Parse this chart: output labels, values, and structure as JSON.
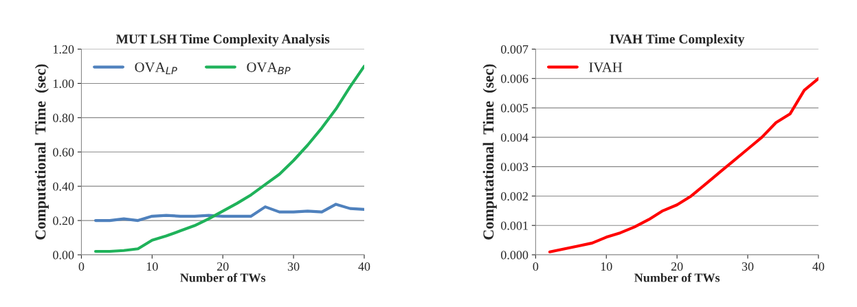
{
  "chart_data": [
    {
      "type": "line",
      "title": "MUT LSH Time Complexity Analysis",
      "xlabel": "Number of TWs",
      "ylabel": "Computational  Time  (sec)",
      "x": [
        2,
        4,
        6,
        8,
        10,
        12,
        14,
        16,
        18,
        20,
        22,
        24,
        26,
        28,
        30,
        32,
        34,
        36,
        38,
        40
      ],
      "series": [
        {
          "name": "OVA$_{LP}$",
          "color": "#4f81bd",
          "values": [
            0.2,
            0.2,
            0.21,
            0.2,
            0.225,
            0.23,
            0.225,
            0.225,
            0.23,
            0.225,
            0.225,
            0.225,
            0.28,
            0.25,
            0.25,
            0.255,
            0.25,
            0.295,
            0.27,
            0.265
          ]
        },
        {
          "name": "OVA$_{BP}$",
          "color": "#1fb25a",
          "values": [
            0.02,
            0.02,
            0.025,
            0.035,
            0.085,
            0.11,
            0.14,
            0.17,
            0.21,
            0.255,
            0.3,
            0.35,
            0.41,
            0.47,
            0.55,
            0.64,
            0.74,
            0.85,
            0.98,
            1.1
          ]
        }
      ],
      "xlim": [
        0,
        40
      ],
      "xticks": [
        0,
        10,
        20,
        30,
        40
      ],
      "ylim": [
        0,
        1.2
      ],
      "yticks": [
        {
          "value": 0,
          "label": "0.00"
        },
        {
          "value": 0.2,
          "label": "0.20"
        },
        {
          "value": 0.4,
          "label": "0.40"
        },
        {
          "value": 0.6,
          "label": "0.60"
        },
        {
          "value": 0.8,
          "label": "0.80"
        },
        {
          "value": 1.0,
          "label": "1.00"
        },
        {
          "value": 1.2,
          "label": "1.20"
        }
      ],
      "grid": "y",
      "legend": "top left",
      "marker": "none",
      "line_style": "solid"
    },
    {
      "type": "line",
      "title": "IVAH Time Complexity",
      "xlabel": "Number of TWs",
      "ylabel": "Computational  Time  (sec)",
      "x": [
        2,
        4,
        6,
        8,
        10,
        12,
        14,
        16,
        18,
        20,
        22,
        24,
        26,
        28,
        30,
        32,
        34,
        36,
        38,
        40
      ],
      "series": [
        {
          "name": "IVAH",
          "color": "#ff0000",
          "values": [
            0.0001,
            0.0002,
            0.0003,
            0.0004,
            0.0006,
            0.00075,
            0.00095,
            0.0012,
            0.0015,
            0.0017,
            0.002,
            0.0024,
            0.0028,
            0.0032,
            0.0036,
            0.004,
            0.0045,
            0.0048,
            0.0056,
            0.006
          ]
        }
      ],
      "xlim": [
        0,
        40
      ],
      "xticks": [
        0,
        10,
        20,
        30,
        40
      ],
      "ylim": [
        0,
        0.007
      ],
      "yticks": [
        {
          "value": 0,
          "label": "0.000"
        },
        {
          "value": 0.001,
          "label": "0.001"
        },
        {
          "value": 0.002,
          "label": "0.002"
        },
        {
          "value": 0.003,
          "label": "0.003"
        },
        {
          "value": 0.004,
          "label": "0.004"
        },
        {
          "value": 0.005,
          "label": "0.005"
        },
        {
          "value": 0.006,
          "label": "0.006"
        },
        {
          "value": 0.007,
          "label": "0.007"
        }
      ],
      "grid": "y",
      "legend": "top left",
      "marker": "none",
      "line_style": "solid"
    }
  ]
}
